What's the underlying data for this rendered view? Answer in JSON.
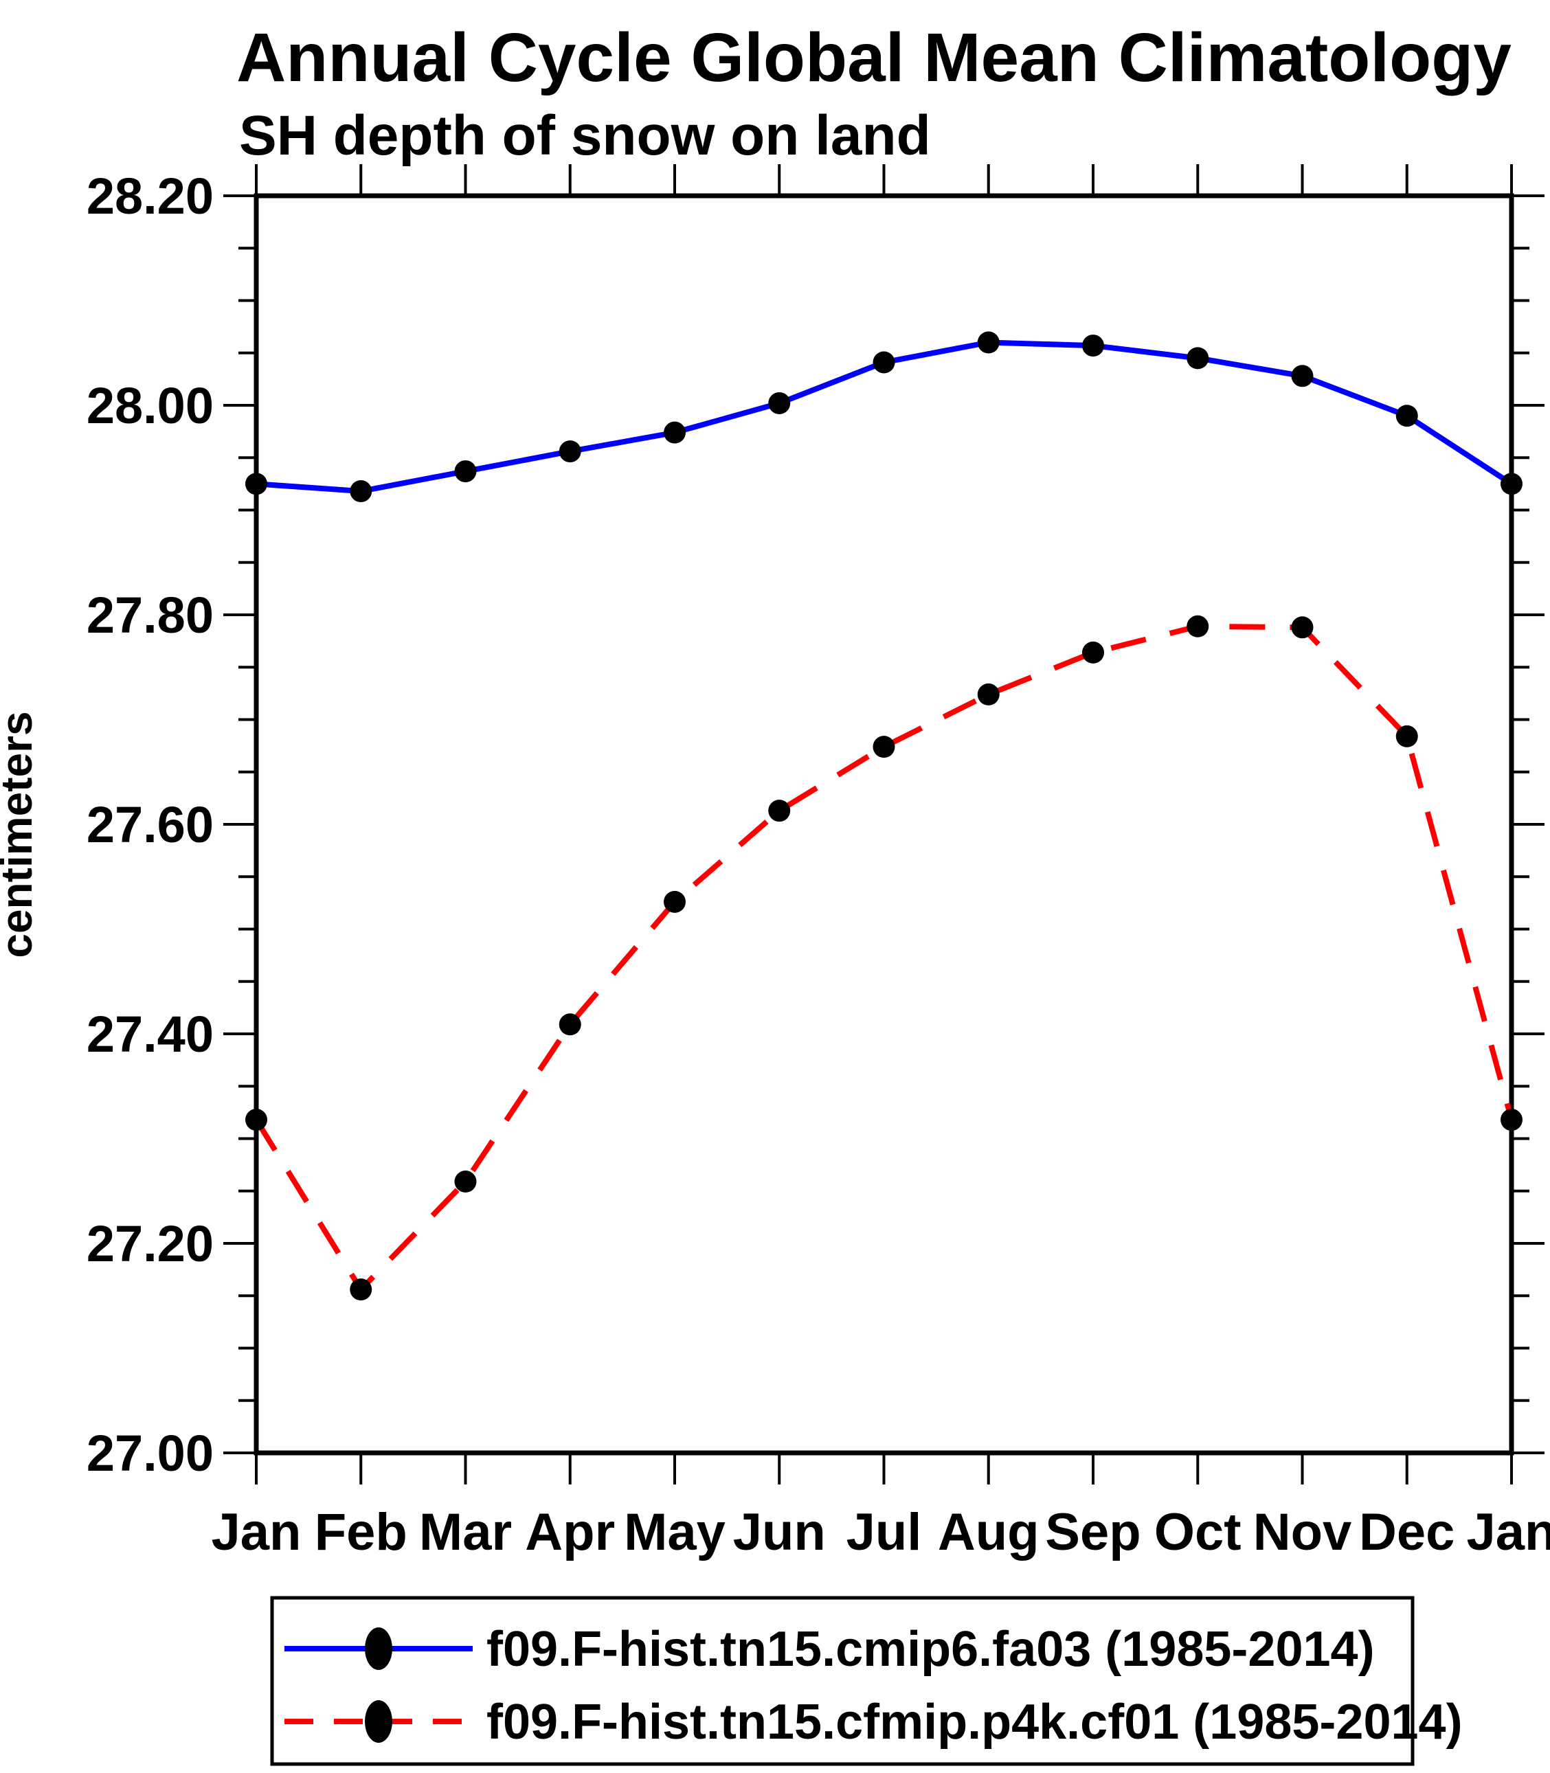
{
  "page": {
    "background": "#ffffff",
    "text_color": "#000000"
  },
  "chart_data": {
    "type": "line",
    "title": "Annual Cycle Global Mean Climatology",
    "subtitle": "SH depth of snow on land",
    "ylabel": "centimeters",
    "categories": [
      "Jan",
      "Feb",
      "Mar",
      "Apr",
      "May",
      "Jun",
      "Jul",
      "Aug",
      "Sep",
      "Oct",
      "Nov",
      "Dec",
      "Jan"
    ],
    "ylim": [
      27.0,
      28.2
    ],
    "y_major_step": 0.2,
    "y_minor_step": 0.05,
    "y_tick_labels": [
      "27.00",
      "27.20",
      "27.40",
      "27.60",
      "27.80",
      "28.00",
      "28.20"
    ],
    "grid": false,
    "legend_position": "bottom",
    "marker_color": "#000000",
    "series": [
      {
        "name": "f09.F-hist.tn15.cmip6.fa03 (1985-2014)",
        "color": "#0000ff",
        "style": "solid",
        "marker": "black-circle",
        "values": [
          27.925,
          27.918,
          27.937,
          27.956,
          27.974,
          28.002,
          28.041,
          28.06,
          28.057,
          28.045,
          28.028,
          27.99,
          27.925
        ]
      },
      {
        "name": "f09.F-hist.tn15.cfmip.p4k.cf01 (1985-2014)",
        "color": "#ff0000",
        "style": "dashed",
        "marker": "black-circle",
        "values": [
          27.318,
          27.156,
          27.259,
          27.409,
          27.526,
          27.613,
          27.674,
          27.724,
          27.764,
          27.789,
          27.788,
          27.684,
          27.318
        ]
      }
    ]
  }
}
